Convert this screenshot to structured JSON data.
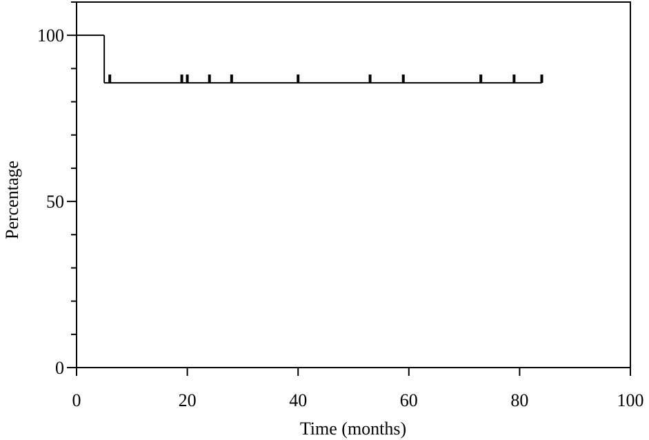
{
  "chart_data": {
    "type": "step",
    "x_label": "Time (months)",
    "y_label": "Percentage",
    "series": [
      {
        "x": [
          0,
          5,
          84
        ],
        "values": [
          100,
          85.7,
          85.7
        ],
        "color": "#000000"
      }
    ],
    "censored": {
      "x": [
        6,
        19,
        20,
        24,
        28,
        40,
        53,
        59,
        73,
        79,
        84
      ],
      "values": [
        85.7,
        85.7,
        85.7,
        85.7,
        85.7,
        85.7,
        85.7,
        85.7,
        85.7,
        85.7,
        85.7
      ]
    },
    "xlim": [
      0,
      100
    ],
    "xticks": [
      0,
      20,
      40,
      60,
      80,
      100
    ],
    "ylim": [
      0,
      110
    ],
    "yticks": [
      0,
      50,
      100
    ],
    "yminorticks": [
      10,
      20,
      30,
      40,
      60,
      70,
      80,
      90,
      110
    ]
  }
}
